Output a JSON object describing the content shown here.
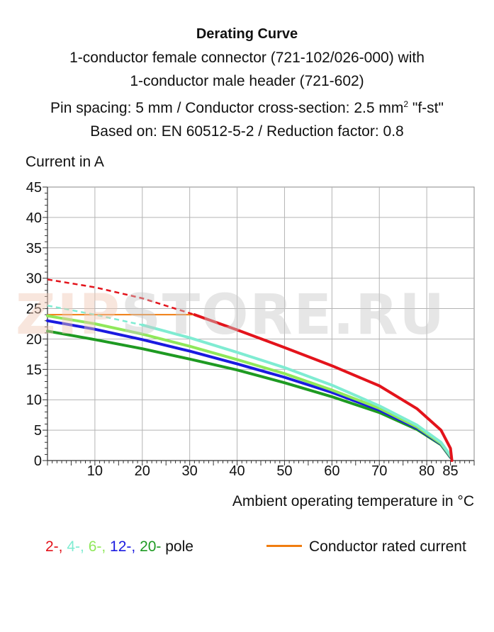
{
  "title": {
    "line1": "Derating Curve",
    "line2": "1-conductor female connector (721-102/026-000) with",
    "line3": "1-conductor male header (721-602)",
    "line4_pre": "Pin spacing: 5 mm / Conductor cross-section: 2.5 mm",
    "line4_sup": "2",
    "line4_post": " \"f-st\"",
    "line5": "Based on: EN 60512-5-2 / Reduction factor: 0.8"
  },
  "watermark": {
    "part_a": "ZIP",
    "part_b": "STORE.RU"
  },
  "legend": {
    "poles": [
      {
        "text": "2-,",
        "color": "#e3131b"
      },
      {
        "text": " 4-,",
        "color": "#7fecd2"
      },
      {
        "text": " 6-,",
        "color": "#8fe85a"
      },
      {
        "text": " 12-,",
        "color": "#1a1ae0"
      },
      {
        "text": " 20-",
        "color": "#1e9a22"
      }
    ],
    "pole_suffix": " pole",
    "rated_label": "Conductor rated current",
    "rated_color": "#f07d10"
  },
  "chart_data": {
    "type": "line",
    "title": "Derating Curve",
    "xlabel": "Ambient operating temperature in °C",
    "ylabel": "Current in A",
    "xlim": [
      0,
      90
    ],
    "ylim": [
      0,
      45
    ],
    "x_ticks": [
      10,
      20,
      30,
      40,
      50,
      60,
      70,
      80,
      85
    ],
    "y_ticks": [
      0,
      5,
      10,
      15,
      20,
      25,
      30,
      35,
      40,
      45
    ],
    "grid": true,
    "series": [
      {
        "name": "2-",
        "color": "#e3131b",
        "dashed_points": [
          [
            0,
            29.8
          ],
          [
            10,
            28.5
          ],
          [
            20,
            26.7
          ],
          [
            31,
            24.0
          ]
        ],
        "points": [
          [
            31,
            24.0
          ],
          [
            40,
            21.5
          ],
          [
            50,
            18.6
          ],
          [
            60,
            15.6
          ],
          [
            70,
            12.3
          ],
          [
            78,
            8.5
          ],
          [
            83,
            5.0
          ],
          [
            85,
            2.0
          ],
          [
            85.3,
            0
          ]
        ]
      },
      {
        "name": "4-",
        "color": "#7fecd2",
        "dashed_points": [
          [
            0,
            25.5
          ],
          [
            10,
            24.0
          ],
          [
            20,
            22.3
          ]
        ],
        "points": [
          [
            20,
            22.3
          ],
          [
            30,
            20.2
          ],
          [
            40,
            17.8
          ],
          [
            50,
            15.3
          ],
          [
            60,
            12.4
          ],
          [
            70,
            9.0
          ],
          [
            78,
            5.8
          ],
          [
            83,
            3.0
          ],
          [
            85,
            0.8
          ]
        ]
      },
      {
        "name": "6-",
        "color": "#8fe85a",
        "points": [
          [
            0,
            23.8
          ],
          [
            10,
            22.5
          ],
          [
            20,
            20.8
          ],
          [
            30,
            18.8
          ],
          [
            40,
            16.6
          ],
          [
            50,
            14.3
          ],
          [
            60,
            11.6
          ],
          [
            70,
            8.6
          ],
          [
            78,
            5.5
          ],
          [
            83,
            2.8
          ],
          [
            85,
            0.7
          ]
        ]
      },
      {
        "name": "12-",
        "color": "#1a1ae0",
        "points": [
          [
            0,
            23.0
          ],
          [
            10,
            21.6
          ],
          [
            20,
            19.9
          ],
          [
            30,
            18.0
          ],
          [
            40,
            15.9
          ],
          [
            50,
            13.7
          ],
          [
            60,
            11.2
          ],
          [
            70,
            8.3
          ],
          [
            78,
            5.3
          ],
          [
            83,
            2.7
          ],
          [
            85,
            0.6
          ]
        ]
      },
      {
        "name": "20-",
        "color": "#1e9a22",
        "points": [
          [
            0,
            21.3
          ],
          [
            10,
            19.9
          ],
          [
            20,
            18.4
          ],
          [
            30,
            16.7
          ],
          [
            40,
            14.9
          ],
          [
            50,
            12.8
          ],
          [
            60,
            10.5
          ],
          [
            70,
            7.9
          ],
          [
            78,
            5.1
          ],
          [
            83,
            2.6
          ],
          [
            85,
            0.5
          ]
        ]
      }
    ],
    "rated_current": {
      "name": "Conductor rated current",
      "color": "#f07d10",
      "y": 24,
      "x_range": [
        0,
        31
      ]
    }
  }
}
